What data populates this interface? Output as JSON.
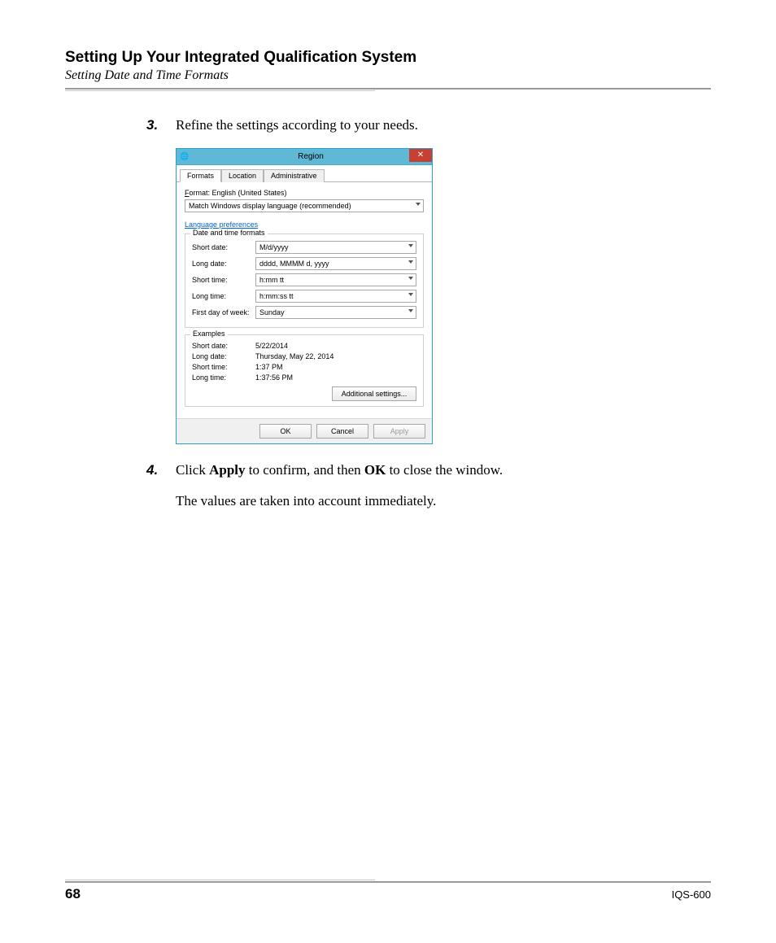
{
  "header": {
    "title": "Setting Up Your Integrated Qualification System",
    "subtitle": "Setting Date and Time Formats"
  },
  "steps": {
    "s3": {
      "num": "3.",
      "text": "Refine the settings according to your needs."
    },
    "s4": {
      "num": "4.",
      "prefix": "Click ",
      "b1": "Apply",
      "mid": " to confirm, and then ",
      "b2": "OK",
      "suffix": " to close the window."
    }
  },
  "followup": "The values are taken into account immediately.",
  "dialog": {
    "title": "Region",
    "tabs": {
      "formats": "Formats",
      "location": "Location",
      "admin": "Administrative"
    },
    "format_label_pre": "F",
    "format_label_rest": "ormat: English (United States)",
    "format_select": "Match Windows display language (recommended)",
    "lang_pref": "Language preferences",
    "group_dt": "Date and time formats",
    "rows": {
      "short_date": {
        "label": "Short date:",
        "value": "M/d/yyyy"
      },
      "long_date": {
        "label": "Long date:",
        "value": "dddd, MMMM d, yyyy"
      },
      "short_time": {
        "label": "Short time:",
        "value": "h:mm tt"
      },
      "long_time": {
        "label": "Long time:",
        "value": "h:mm:ss tt"
      },
      "first_day": {
        "label": "First day of week:",
        "value": "Sunday"
      }
    },
    "group_ex": "Examples",
    "examples": {
      "short_date": {
        "label": "Short date:",
        "value": "5/22/2014"
      },
      "long_date": {
        "label": "Long date:",
        "value": "Thursday, May 22, 2014"
      },
      "short_time": {
        "label": "Short time:",
        "value": "1:37 PM"
      },
      "long_time": {
        "label": "Long time:",
        "value": "1:37:56 PM"
      }
    },
    "buttons": {
      "additional": "Additional settings...",
      "ok": "OK",
      "cancel": "Cancel",
      "apply": "Apply"
    }
  },
  "footer": {
    "page": "68",
    "docid": "IQS-600"
  },
  "colors": {
    "titlebar": "#5fb8d6",
    "close": "#c84031",
    "link": "#0066cc",
    "rule_dark": "#9a9a9a",
    "rule_light": "#c8c8c8"
  }
}
